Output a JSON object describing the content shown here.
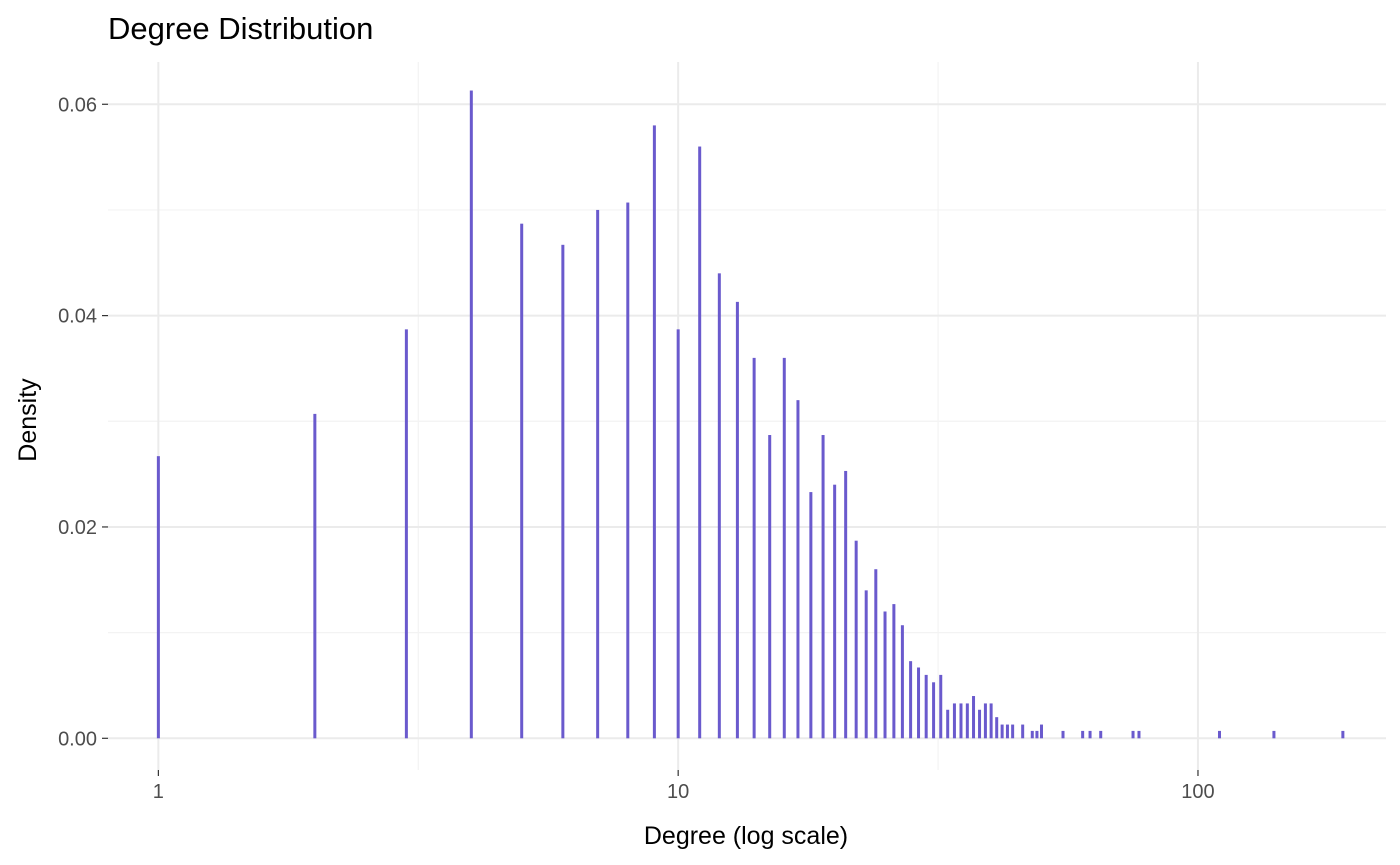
{
  "chart_data": {
    "type": "bar",
    "title": "Degree Distribution",
    "xlabel": "Degree (log scale)",
    "ylabel": "Density",
    "x_scale": "log10",
    "xlim": [
      0.8,
      230
    ],
    "ylim": [
      -0.003,
      0.064
    ],
    "x_ticks": [
      1,
      10,
      100
    ],
    "x_tick_labels": [
      "1",
      "10",
      "100"
    ],
    "y_ticks": [
      0,
      0.02,
      0.04,
      0.06
    ],
    "y_tick_labels": [
      "0.00",
      "0.02",
      "0.04",
      "0.06"
    ],
    "grid": true,
    "bar_color": "#6a5acd",
    "x": [
      1,
      2,
      3,
      4,
      5,
      6,
      7,
      8,
      9,
      10,
      11,
      12,
      13,
      14,
      15,
      16,
      17,
      18,
      19,
      20,
      21,
      22,
      23,
      24,
      25,
      26,
      27,
      28,
      29,
      30,
      31,
      32,
      33,
      34,
      35,
      36,
      37,
      38,
      39,
      40,
      41,
      42,
      43,
      44,
      46,
      48,
      49,
      50,
      55,
      60,
      62,
      65,
      75,
      77,
      110,
      140,
      190
    ],
    "values": [
      0.0267,
      0.0307,
      0.0387,
      0.0613,
      0.0487,
      0.0467,
      0.05,
      0.0507,
      0.058,
      0.0387,
      0.056,
      0.044,
      0.0413,
      0.036,
      0.0287,
      0.036,
      0.032,
      0.0233,
      0.0287,
      0.024,
      0.0253,
      0.0187,
      0.014,
      0.016,
      0.012,
      0.0127,
      0.0107,
      0.0073,
      0.0067,
      0.006,
      0.0053,
      0.006,
      0.0027,
      0.0033,
      0.0033,
      0.0033,
      0.004,
      0.0027,
      0.0033,
      0.0033,
      0.002,
      0.0013,
      0.0013,
      0.0013,
      0.0013,
      0.0007,
      0.0007,
      0.0013,
      0.0007,
      0.0007,
      0.0007,
      0.0007,
      0.0007,
      0.0007,
      0.0007,
      0.0007,
      0.0007
    ]
  }
}
